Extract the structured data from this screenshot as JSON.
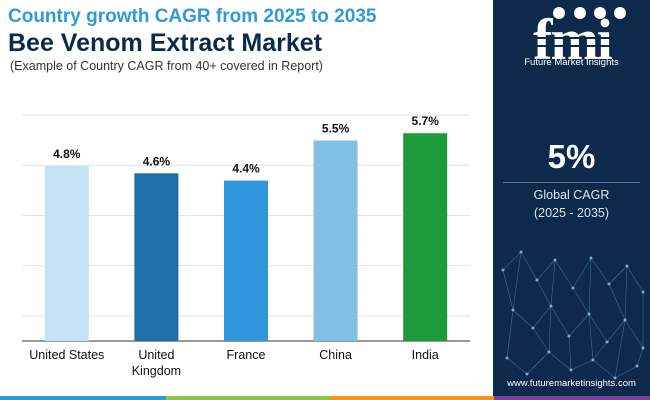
{
  "header": {
    "title_line1": "Country growth CAGR from 2025 to 2035",
    "title_line2": "Bee Venom Extract Market",
    "subtitle": "(Example of Country CAGR from 40+ covered in Report)"
  },
  "brand": {
    "logo_letters": "fmi",
    "name": "Future Market Insights",
    "url": "www.futuremarketinsights.com"
  },
  "stat": {
    "value": "5%",
    "label": "Global CAGR",
    "period": "(2025 - 2035)"
  },
  "colors": {
    "title_accent": "#2e9ad9",
    "title_dark": "#0b2a4a",
    "panel_bg": "#0d2a4d",
    "footer_segments": [
      "#2e9ad9",
      "#8cc63f",
      "#f7941d",
      "#7b3f98"
    ]
  },
  "chart_data": {
    "type": "bar",
    "title": "",
    "xlabel": "",
    "ylabel": "",
    "ylim": [
      0,
      6.2
    ],
    "grid": true,
    "categories": [
      "United States",
      "United Kingdom",
      "France",
      "China",
      "India"
    ],
    "category_lines": [
      [
        "United States"
      ],
      [
        "United",
        "Kingdom"
      ],
      [
        "France"
      ],
      [
        "China"
      ],
      [
        "India"
      ]
    ],
    "values": [
      4.8,
      4.6,
      4.4,
      5.5,
      5.7
    ],
    "data_labels": [
      "4.8%",
      "4.6%",
      "4.4%",
      "5.5%",
      "5.7%"
    ],
    "bar_colors": [
      "#c3e2f4",
      "#1d6fa8",
      "#2f97dd",
      "#82bfe6",
      "#1d9b3b"
    ]
  }
}
